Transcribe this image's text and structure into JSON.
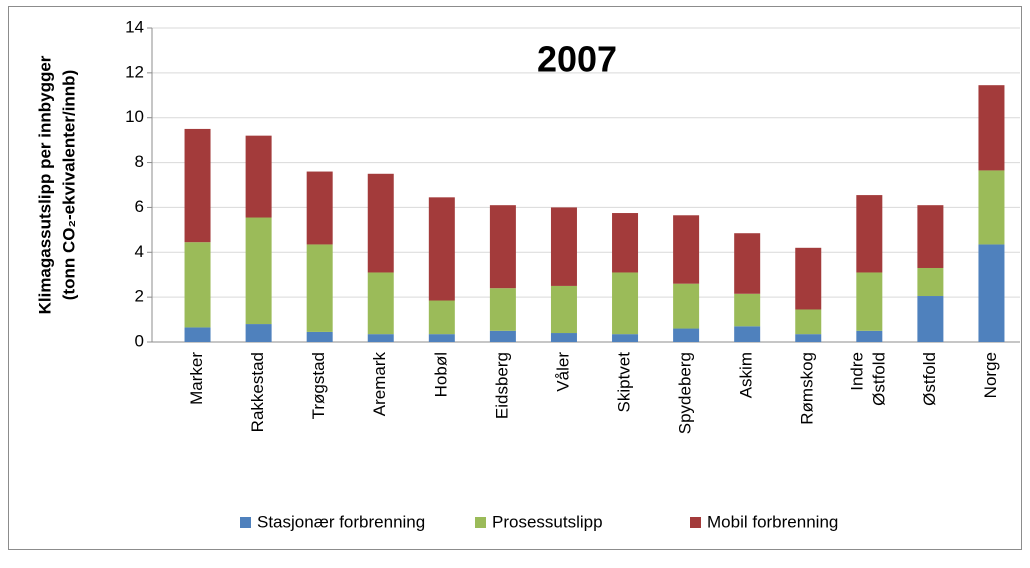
{
  "chart_data": {
    "type": "bar",
    "stacked": true,
    "title": "2007",
    "y_label": [
      "Klimagassutslipp per innbygger",
      "(tonn CO₂-ekvivalenter/innb)"
    ],
    "categories": [
      "Marker",
      "Rakkestad",
      "Trøgstad",
      "Aremark",
      "Hobøl",
      "Eidsberg",
      "Våler",
      "Skiptvet",
      "Spydeberg",
      "Askim",
      "Rømskog",
      "Indre Østfold",
      "Østfold",
      "Norge"
    ],
    "series": [
      {
        "name": "Stasjonær forbrenning",
        "color": "#4f81bd",
        "values": [
          0.65,
          0.8,
          0.45,
          0.35,
          0.35,
          0.5,
          0.4,
          0.35,
          0.6,
          0.7,
          0.35,
          0.5,
          2.05,
          4.35
        ]
      },
      {
        "name": "Prosessutslipp",
        "color": "#9bbb59",
        "values": [
          3.8,
          4.75,
          3.9,
          2.75,
          1.5,
          1.9,
          2.1,
          2.75,
          2.0,
          1.45,
          1.1,
          2.6,
          1.25,
          3.3
        ]
      },
      {
        "name": "Mobil forbrenning",
        "color": "#a33b3b",
        "values": [
          5.05,
          3.65,
          3.25,
          4.4,
          4.6,
          3.7,
          3.5,
          2.65,
          3.05,
          2.7,
          2.75,
          3.45,
          2.8,
          3.8
        ]
      }
    ],
    "ylim": [
      0,
      14
    ],
    "yticks": [
      0,
      2,
      4,
      6,
      8,
      10,
      12,
      14
    ],
    "grid": true,
    "legend": "bottom"
  }
}
